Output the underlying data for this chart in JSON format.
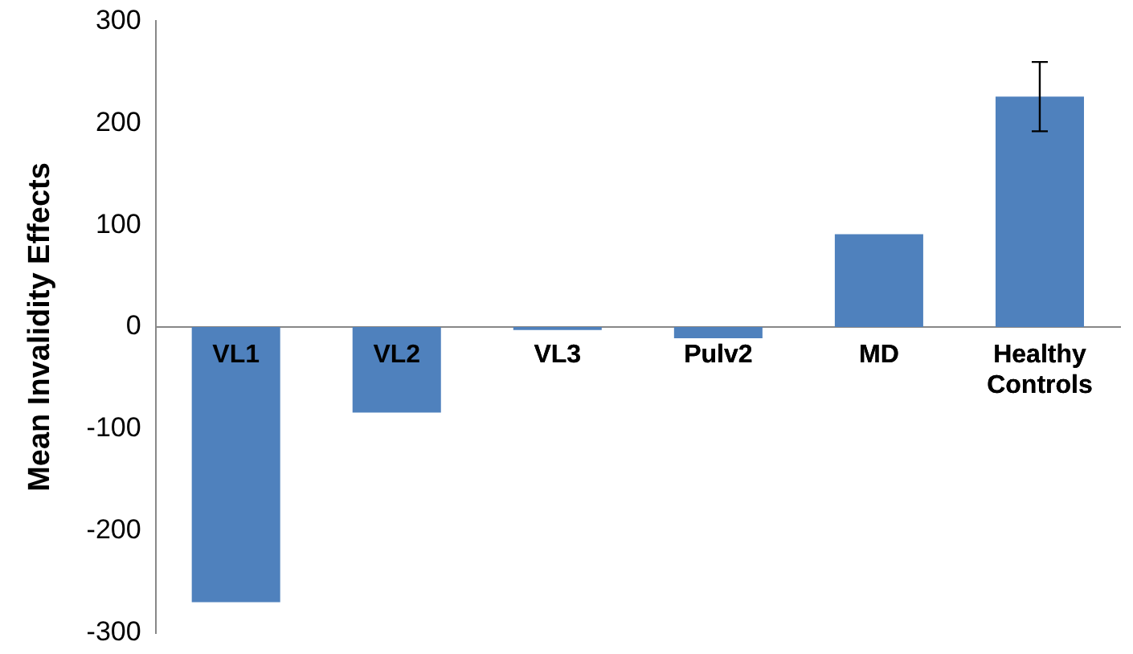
{
  "chart_data": {
    "type": "bar",
    "ylabel": "Mean Invalidity Effects",
    "categories": [
      "VL1",
      "VL2",
      "VL3",
      "Pulv2",
      "MD",
      "Healthy Controls"
    ],
    "values": [
      -270,
      -84,
      -3,
      -11,
      91,
      226
    ],
    "errors": [
      null,
      null,
      null,
      null,
      null,
      34
    ],
    "color": "#4f81bd",
    "ylim": [
      -300,
      300
    ],
    "yticks": [
      -300,
      -200,
      -100,
      0,
      100,
      200,
      300
    ],
    "grid": false
  }
}
